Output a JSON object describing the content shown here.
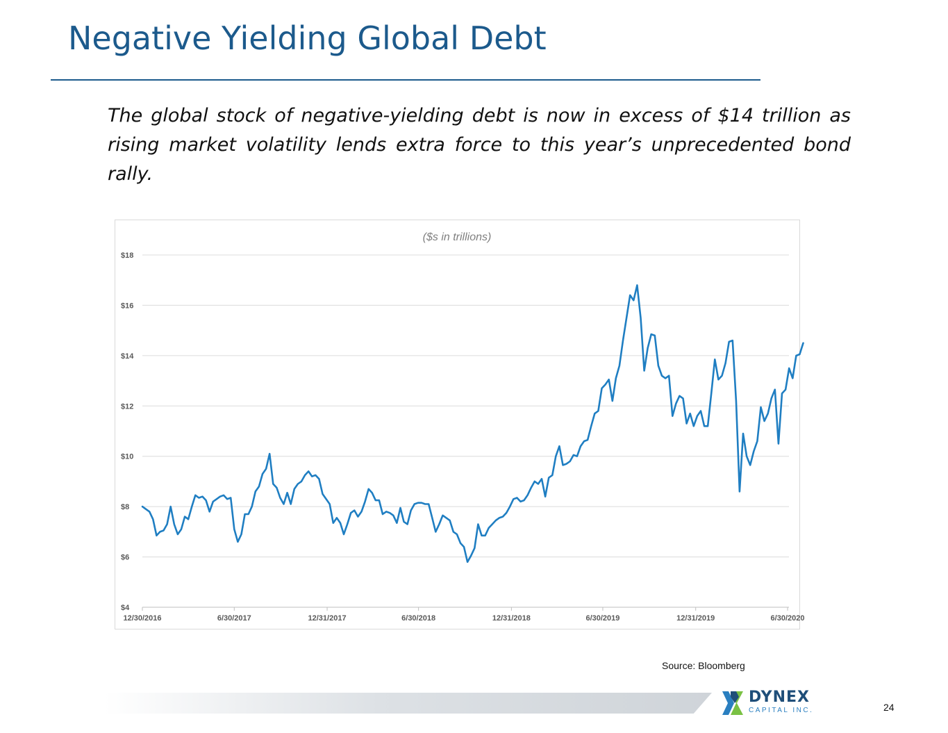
{
  "slide": {
    "title": "Negative Yielding Global Debt",
    "subtitle": "The global stock of negative-yielding debt is now in excess of $14 trillion as rising market volatility lends extra force to this year’s unprecedented bond rally.",
    "source": "Source: Bloomberg",
    "page_number": "24",
    "logo": {
      "name": "DYNEX",
      "tagline": "CAPITAL INC.",
      "icon": "dynex-x-logo-icon"
    }
  },
  "chart_data": {
    "type": "line",
    "title": "($s in trillions)",
    "xlabel": "",
    "ylabel": "",
    "ylim": [
      4,
      18
    ],
    "y_ticks": [
      4,
      6,
      8,
      10,
      12,
      14,
      16,
      18
    ],
    "y_tick_labels": [
      "$4",
      "$6",
      "$8",
      "$10",
      "$12",
      "$14",
      "$16",
      "$18"
    ],
    "x_range": [
      "2016-12-30",
      "2020-07-10"
    ],
    "x_ticks": [
      "2016-12-30",
      "2017-06-30",
      "2017-12-31",
      "2018-06-30",
      "2018-12-31",
      "2019-06-30",
      "2019-12-31",
      "2020-06-30"
    ],
    "x_tick_labels": [
      "12/30/2016",
      "6/30/2017",
      "12/31/2017",
      "6/30/2018",
      "12/31/2018",
      "6/30/2019",
      "12/31/2019",
      "6/30/2020"
    ],
    "grid": true,
    "line_color": "#1f7ec2",
    "series": [
      {
        "name": "",
        "points": [
          [
            "2016-12-30",
            8.0
          ],
          [
            "2017-01-06",
            7.9
          ],
          [
            "2017-01-13",
            7.8
          ],
          [
            "2017-01-20",
            7.5
          ],
          [
            "2017-01-27",
            6.85
          ],
          [
            "2017-02-03",
            7.0
          ],
          [
            "2017-02-10",
            7.05
          ],
          [
            "2017-02-17",
            7.3
          ],
          [
            "2017-02-24",
            8.0
          ],
          [
            "2017-03-03",
            7.3
          ],
          [
            "2017-03-10",
            6.9
          ],
          [
            "2017-03-17",
            7.1
          ],
          [
            "2017-03-24",
            7.6
          ],
          [
            "2017-03-31",
            7.5
          ],
          [
            "2017-04-07",
            8.0
          ],
          [
            "2017-04-14",
            8.45
          ],
          [
            "2017-04-21",
            8.35
          ],
          [
            "2017-04-28",
            8.4
          ],
          [
            "2017-05-05",
            8.25
          ],
          [
            "2017-05-12",
            7.8
          ],
          [
            "2017-05-19",
            8.2
          ],
          [
            "2017-05-26",
            8.3
          ],
          [
            "2017-06-02",
            8.4
          ],
          [
            "2017-06-09",
            8.45
          ],
          [
            "2017-06-16",
            8.3
          ],
          [
            "2017-06-23",
            8.35
          ],
          [
            "2017-06-30",
            7.1
          ],
          [
            "2017-07-07",
            6.6
          ],
          [
            "2017-07-14",
            6.9
          ],
          [
            "2017-07-21",
            7.7
          ],
          [
            "2017-07-28",
            7.7
          ],
          [
            "2017-08-04",
            8.0
          ],
          [
            "2017-08-11",
            8.6
          ],
          [
            "2017-08-18",
            8.8
          ],
          [
            "2017-08-25",
            9.3
          ],
          [
            "2017-09-01",
            9.5
          ],
          [
            "2017-09-08",
            10.1
          ],
          [
            "2017-09-15",
            8.9
          ],
          [
            "2017-09-22",
            8.75
          ],
          [
            "2017-09-29",
            8.35
          ],
          [
            "2017-10-06",
            8.1
          ],
          [
            "2017-10-13",
            8.55
          ],
          [
            "2017-10-20",
            8.1
          ],
          [
            "2017-10-27",
            8.7
          ],
          [
            "2017-11-03",
            8.9
          ],
          [
            "2017-11-10",
            9.0
          ],
          [
            "2017-11-17",
            9.25
          ],
          [
            "2017-11-24",
            9.4
          ],
          [
            "2017-12-01",
            9.2
          ],
          [
            "2017-12-08",
            9.25
          ],
          [
            "2017-12-15",
            9.1
          ],
          [
            "2017-12-22",
            8.5
          ],
          [
            "2017-12-29",
            8.3
          ],
          [
            "2018-01-05",
            8.1
          ],
          [
            "2018-01-12",
            7.35
          ],
          [
            "2018-01-19",
            7.55
          ],
          [
            "2018-01-26",
            7.35
          ],
          [
            "2018-02-02",
            6.9
          ],
          [
            "2018-02-09",
            7.3
          ],
          [
            "2018-02-16",
            7.75
          ],
          [
            "2018-02-23",
            7.85
          ],
          [
            "2018-03-02",
            7.6
          ],
          [
            "2018-03-09",
            7.8
          ],
          [
            "2018-03-16",
            8.2
          ],
          [
            "2018-03-23",
            8.7
          ],
          [
            "2018-03-30",
            8.55
          ],
          [
            "2018-04-06",
            8.25
          ],
          [
            "2018-04-13",
            8.25
          ],
          [
            "2018-04-20",
            7.7
          ],
          [
            "2018-04-27",
            7.8
          ],
          [
            "2018-05-04",
            7.75
          ],
          [
            "2018-05-11",
            7.65
          ],
          [
            "2018-05-18",
            7.35
          ],
          [
            "2018-05-25",
            7.95
          ],
          [
            "2018-06-01",
            7.4
          ],
          [
            "2018-06-08",
            7.3
          ],
          [
            "2018-06-15",
            7.85
          ],
          [
            "2018-06-22",
            8.1
          ],
          [
            "2018-06-29",
            8.15
          ],
          [
            "2018-07-06",
            8.15
          ],
          [
            "2018-07-13",
            8.1
          ],
          [
            "2018-07-20",
            8.1
          ],
          [
            "2018-07-27",
            7.55
          ],
          [
            "2018-08-03",
            7.0
          ],
          [
            "2018-08-10",
            7.3
          ],
          [
            "2018-08-17",
            7.65
          ],
          [
            "2018-08-24",
            7.55
          ],
          [
            "2018-08-31",
            7.45
          ],
          [
            "2018-09-07",
            7.0
          ],
          [
            "2018-09-14",
            6.9
          ],
          [
            "2018-09-21",
            6.55
          ],
          [
            "2018-09-28",
            6.4
          ],
          [
            "2018-10-05",
            5.8
          ],
          [
            "2018-10-12",
            6.05
          ],
          [
            "2018-10-19",
            6.35
          ],
          [
            "2018-10-26",
            7.3
          ],
          [
            "2018-11-02",
            6.85
          ],
          [
            "2018-11-09",
            6.85
          ],
          [
            "2018-11-16",
            7.15
          ],
          [
            "2018-11-23",
            7.3
          ],
          [
            "2018-11-30",
            7.45
          ],
          [
            "2018-12-07",
            7.55
          ],
          [
            "2018-12-14",
            7.6
          ],
          [
            "2018-12-21",
            7.75
          ],
          [
            "2018-12-28",
            8.0
          ],
          [
            "2019-01-04",
            8.3
          ],
          [
            "2019-01-11",
            8.35
          ],
          [
            "2019-01-18",
            8.2
          ],
          [
            "2019-01-25",
            8.25
          ],
          [
            "2019-02-01",
            8.45
          ],
          [
            "2019-02-08",
            8.75
          ],
          [
            "2019-02-15",
            9.0
          ],
          [
            "2019-02-22",
            8.9
          ],
          [
            "2019-03-01",
            9.1
          ],
          [
            "2019-03-08",
            8.4
          ],
          [
            "2019-03-15",
            9.15
          ],
          [
            "2019-03-22",
            9.25
          ],
          [
            "2019-03-29",
            10.0
          ],
          [
            "2019-04-05",
            10.4
          ],
          [
            "2019-04-12",
            9.65
          ],
          [
            "2019-04-19",
            9.7
          ],
          [
            "2019-04-26",
            9.8
          ],
          [
            "2019-05-03",
            10.05
          ],
          [
            "2019-05-10",
            10.0
          ],
          [
            "2019-05-17",
            10.4
          ],
          [
            "2019-05-24",
            10.6
          ],
          [
            "2019-05-31",
            10.65
          ],
          [
            "2019-06-07",
            11.2
          ],
          [
            "2019-06-14",
            11.7
          ],
          [
            "2019-06-21",
            11.8
          ],
          [
            "2019-06-28",
            12.7
          ],
          [
            "2019-07-05",
            12.85
          ],
          [
            "2019-07-12",
            13.05
          ],
          [
            "2019-07-19",
            12.2
          ],
          [
            "2019-07-26",
            13.1
          ],
          [
            "2019-08-02",
            13.6
          ],
          [
            "2019-08-09",
            14.6
          ],
          [
            "2019-08-16",
            15.5
          ],
          [
            "2019-08-23",
            16.4
          ],
          [
            "2019-08-30",
            16.2
          ],
          [
            "2019-09-06",
            16.8
          ],
          [
            "2019-09-13",
            15.5
          ],
          [
            "2019-09-20",
            13.4
          ],
          [
            "2019-09-27",
            14.3
          ],
          [
            "2019-10-04",
            14.85
          ],
          [
            "2019-10-11",
            14.8
          ],
          [
            "2019-10-18",
            13.6
          ],
          [
            "2019-10-25",
            13.2
          ],
          [
            "2019-11-01",
            13.1
          ],
          [
            "2019-11-08",
            13.2
          ],
          [
            "2019-11-15",
            11.6
          ],
          [
            "2019-11-22",
            12.1
          ],
          [
            "2019-11-29",
            12.4
          ],
          [
            "2019-12-06",
            12.3
          ],
          [
            "2019-12-13",
            11.3
          ],
          [
            "2019-12-20",
            11.7
          ],
          [
            "2019-12-27",
            11.2
          ],
          [
            "2020-01-03",
            11.6
          ],
          [
            "2020-01-10",
            11.8
          ],
          [
            "2020-01-17",
            11.2
          ],
          [
            "2020-01-24",
            11.2
          ],
          [
            "2020-01-31",
            12.5
          ],
          [
            "2020-02-07",
            13.85
          ],
          [
            "2020-02-14",
            13.05
          ],
          [
            "2020-02-21",
            13.2
          ],
          [
            "2020-02-28",
            13.7
          ],
          [
            "2020-03-06",
            14.55
          ],
          [
            "2020-03-13",
            14.6
          ],
          [
            "2020-03-20",
            12.2
          ],
          [
            "2020-03-27",
            8.6
          ],
          [
            "2020-04-03",
            10.9
          ],
          [
            "2020-04-10",
            10.0
          ],
          [
            "2020-04-17",
            9.65
          ],
          [
            "2020-04-24",
            10.2
          ],
          [
            "2020-05-01",
            10.6
          ],
          [
            "2020-05-08",
            11.95
          ],
          [
            "2020-05-15",
            11.4
          ],
          [
            "2020-05-22",
            11.7
          ],
          [
            "2020-05-29",
            12.3
          ],
          [
            "2020-06-05",
            12.65
          ],
          [
            "2020-06-12",
            10.5
          ],
          [
            "2020-06-19",
            12.5
          ],
          [
            "2020-06-26",
            12.65
          ],
          [
            "2020-07-03",
            13.5
          ],
          [
            "2020-07-10",
            13.1
          ],
          [
            "2020-07-17",
            14.0
          ],
          [
            "2020-07-24",
            14.05
          ],
          [
            "2020-07-31",
            14.5
          ]
        ]
      }
    ]
  }
}
